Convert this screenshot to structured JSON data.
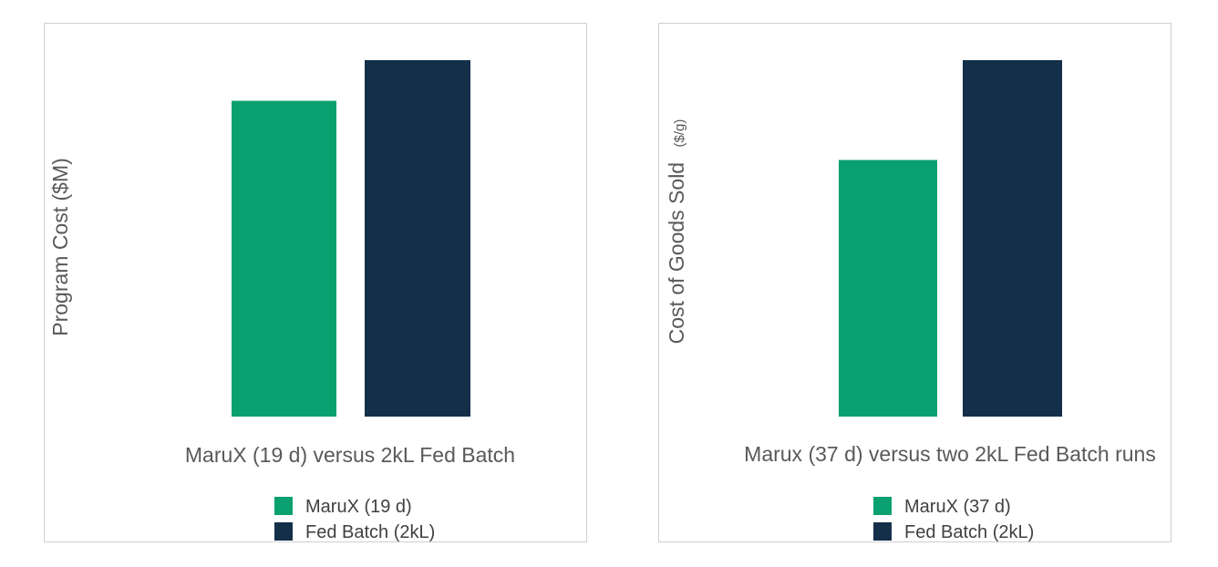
{
  "colors": {
    "marux": "#0aa06f",
    "fed_batch": "#132f4a"
  },
  "chart_data": [
    {
      "type": "bar",
      "ylabel": "Program  Cost ($M)",
      "xlabel": "MaruX (19 d) versus 2kL Fed Batch",
      "ylim": [
        0,
        100
      ],
      "grid": false,
      "legend_position": "bottom",
      "series": [
        {
          "name": "MaruX (19 d)",
          "values": [
            88.6
          ]
        },
        {
          "name": "Fed Batch (2kL)",
          "values": [
            100
          ]
        }
      ]
    },
    {
      "type": "bar",
      "ylabel_main": "Cost of Goods Sold",
      "ylabel_unit": "($/g)",
      "xlabel": "Marux (37 d) versus two 2kL Fed Batch runs",
      "ylim": [
        0,
        100
      ],
      "grid": false,
      "legend_position": "bottom",
      "series": [
        {
          "name": "MaruX (37 d)",
          "values": [
            72
          ]
        },
        {
          "name": "Fed Batch (2kL)",
          "values": [
            100
          ]
        }
      ]
    }
  ]
}
